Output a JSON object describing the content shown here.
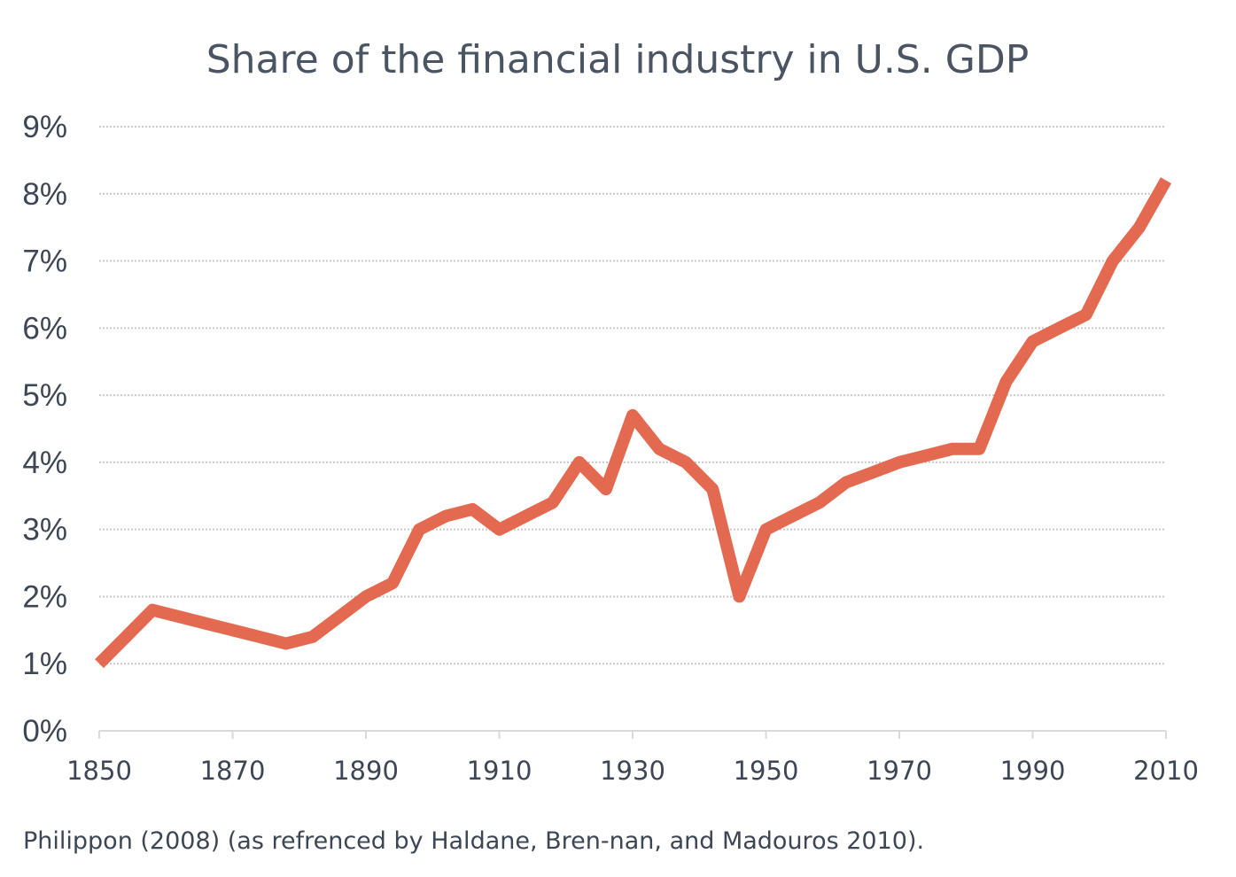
{
  "colors": {
    "series": "#e36a50",
    "text": "#3d4654"
  },
  "chart_data": {
    "type": "line",
    "title": "Share of the financial industry in U.S. GDP",
    "xlabel": "",
    "ylabel": "",
    "xlim": [
      1850,
      2010
    ],
    "ylim": [
      0,
      9
    ],
    "y_ticks": [
      0,
      1,
      2,
      3,
      4,
      5,
      6,
      7,
      8,
      9
    ],
    "y_tick_labels": [
      "0%",
      "1%",
      "2%",
      "3%",
      "4%",
      "5%",
      "6%",
      "7%",
      "8%",
      "9%"
    ],
    "x_ticks": [
      1850,
      1870,
      1890,
      1910,
      1930,
      1950,
      1970,
      1990,
      2010
    ],
    "x_tick_labels": [
      "1850",
      "1870",
      "1890",
      "1910",
      "1930",
      "1950",
      "1970",
      "1990",
      "2010"
    ],
    "grid": true,
    "legend": "none",
    "series": [
      {
        "x": [
          1850,
          1854,
          1858,
          1862,
          1866,
          1870,
          1874,
          1878,
          1882,
          1886,
          1890,
          1894,
          1898,
          1902,
          1906,
          1910,
          1914,
          1918,
          1922,
          1926,
          1930,
          1934,
          1938,
          1942,
          1946,
          1950,
          1954,
          1958,
          1962,
          1966,
          1970,
          1974,
          1978,
          1982,
          1986,
          1990,
          1994,
          1998,
          2002,
          2006,
          2010
        ],
        "values": [
          1.0,
          1.4,
          1.8,
          1.7,
          1.6,
          1.5,
          1.4,
          1.3,
          1.4,
          1.7,
          2.0,
          2.2,
          3.0,
          3.2,
          3.3,
          3.0,
          3.2,
          3.4,
          4.0,
          3.6,
          4.7,
          4.2,
          4.0,
          3.6,
          2.0,
          3.0,
          3.2,
          3.4,
          3.7,
          3.85,
          4.0,
          4.1,
          4.2,
          4.2,
          5.2,
          5.8,
          6.0,
          6.2,
          7.0,
          7.5,
          8.2
        ]
      }
    ]
  },
  "source_note": "Philippon  (2008) (as refrenced by Haldane, Bren-nan, and Madouros 2010)."
}
